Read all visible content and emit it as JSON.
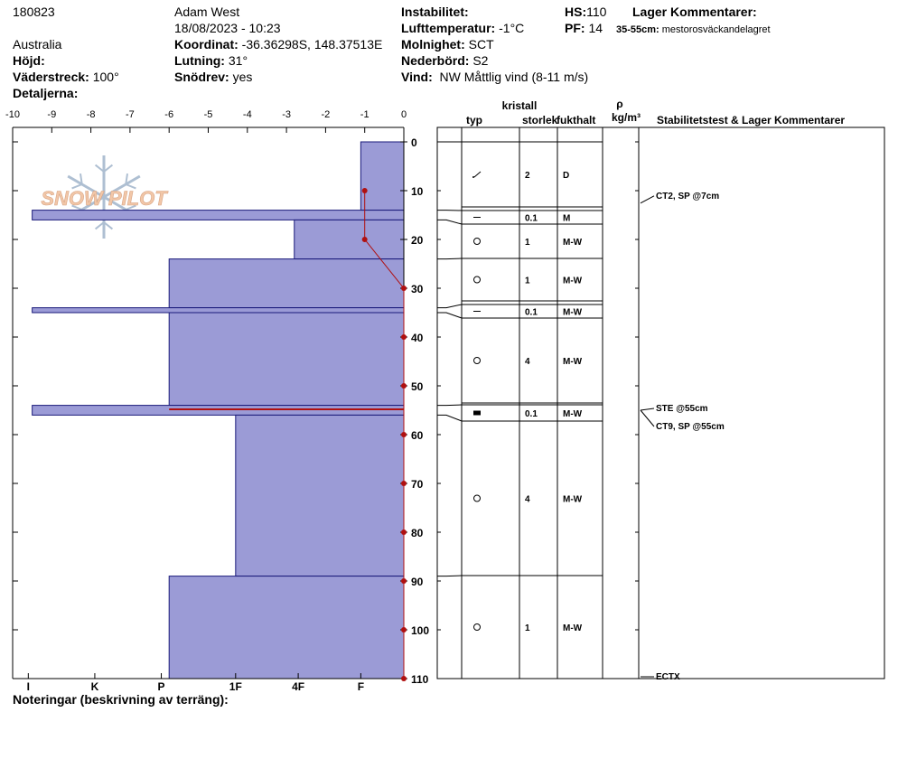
{
  "header": {
    "id": "180823",
    "observer": "Adam West",
    "datetime": "18/08/2023 - 10:23",
    "region": "Australia",
    "coord_label": "Koordinat:",
    "coord_value": "-36.36298S, 148.37513E",
    "elev_label": "Höjd:",
    "elev_value": "",
    "slope_label": "Lutning:",
    "slope_value": "31°",
    "aspect_label": "Väderstreck:",
    "aspect_value": "100°",
    "blowing_label": "Snödrev:",
    "blowing_value": "yes",
    "details_label": "Detaljerna:",
    "details_value": "",
    "instab_label": "Instabilitet:",
    "instab_value": "",
    "airtemp_label": "Lufttemperatur:",
    "airtemp_value": "-1°C",
    "sky_label": "Molnighet:",
    "sky_value": "SCT",
    "precip_label": "Nederbörd:",
    "precip_value": "S2",
    "wind_label": "Vind:",
    "wind_value": "NW Måttlig vind (8-11 m/s)",
    "hs_label": "HS:",
    "hs_value": "110",
    "pf_label": "PF:",
    "pf_value": "14",
    "layer_comments_label": "Lager Kommentarer:",
    "layer_comment_range": "35-55cm:",
    "layer_comment_text": "mestorosväckandelagret",
    "notes_label": "Noteringar (beskrivning av terräng):"
  },
  "logo_text": "SNOW PILOT",
  "table_headers": {
    "kristall": "kristall",
    "typ": "typ",
    "storlek": "storlek",
    "fukthalt": "fukthalt",
    "rho": "ρ",
    "density_unit": "kg/m³",
    "stability": "Stabilitetstest & Lager Kommentarer"
  },
  "colors": {
    "hardness_fill": "#9b9bd6",
    "hardness_stroke": "#1a1a7a",
    "temp_line": "#b01010",
    "weak_layer": "#b01010"
  },
  "chart_data": {
    "type": "snow_profile",
    "temperature_axis": {
      "ticks": [
        -10,
        -9,
        -8,
        -7,
        -6,
        -5,
        -4,
        -3,
        -2,
        -1,
        0
      ],
      "range": [
        -10,
        0
      ],
      "unit": "°C"
    },
    "depth_axis": {
      "ticks": [
        0,
        10,
        20,
        30,
        40,
        50,
        60,
        70,
        80,
        90,
        100,
        110
      ],
      "range": [
        0,
        110
      ],
      "unit": "cm"
    },
    "hardness_axis": {
      "labels": [
        "I",
        "K",
        "P",
        "1F",
        "4F",
        "F"
      ]
    },
    "temperature_profile": [
      {
        "depth": 10,
        "temp": -1
      },
      {
        "depth": 20,
        "temp": -1
      },
      {
        "depth": 30,
        "temp": 0
      },
      {
        "depth": 40,
        "temp": 0
      },
      {
        "depth": 50,
        "temp": 0
      },
      {
        "depth": 60,
        "temp": 0
      },
      {
        "depth": 70,
        "temp": 0
      },
      {
        "depth": 80,
        "temp": 0
      },
      {
        "depth": 90,
        "temp": 0
      },
      {
        "depth": 100,
        "temp": 0
      },
      {
        "depth": 110,
        "temp": 0
      }
    ],
    "layers": [
      {
        "top": 0,
        "bottom": 14,
        "hardness_value": -1.1,
        "grain": "decomposing",
        "size": "2",
        "moisture": "D"
      },
      {
        "top": 14,
        "bottom": 16,
        "hardness_value": -9.5,
        "grain": "surface-hoar",
        "size": "0.1",
        "moisture": "M"
      },
      {
        "top": 16,
        "bottom": 24,
        "hardness_value": -2.8,
        "grain": "rounded",
        "size": "1",
        "moisture": "M-W"
      },
      {
        "top": 24,
        "bottom": 34,
        "hardness_value": -6.0,
        "grain": "rounded",
        "size": "1",
        "moisture": "M-W"
      },
      {
        "top": 34,
        "bottom": 35,
        "hardness_value": -9.5,
        "grain": "surface-hoar",
        "size": "0.1",
        "moisture": "M-W"
      },
      {
        "top": 35,
        "bottom": 54,
        "hardness_value": -6.0,
        "grain": "rounded",
        "size": "4",
        "moisture": "M-W"
      },
      {
        "top": 54,
        "bottom": 56,
        "hardness_value": -9.5,
        "grain": "ice",
        "size": "0.1",
        "moisture": "M-W"
      },
      {
        "top": 56,
        "bottom": 89,
        "hardness_value": -4.3,
        "grain": "rounded",
        "size": "4",
        "moisture": "M-W"
      },
      {
        "top": 89,
        "bottom": 110,
        "hardness_value": -6.0,
        "grain": "rounded",
        "size": "1",
        "moisture": "M-W"
      }
    ],
    "weak_layer_depth": 55,
    "row_markers": [
      {
        "depth": 7,
        "label": "CT2, SP @7cm"
      },
      {
        "depth": 55,
        "label": "STE @55cm"
      },
      {
        "depth": 55,
        "label": "CT9, SP @55cm"
      },
      {
        "depth": 110,
        "label": "ECTX"
      }
    ]
  }
}
